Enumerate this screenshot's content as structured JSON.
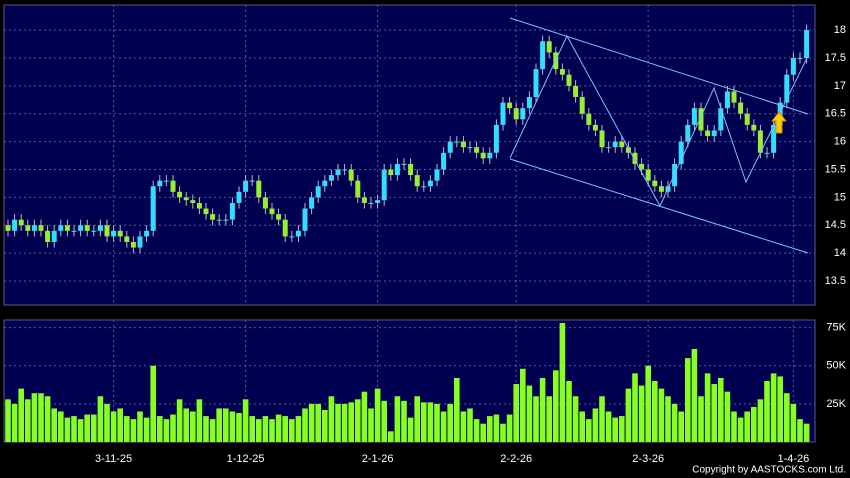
{
  "chart_data": [
    {
      "type": "candlestick",
      "up_color": "#33ddff",
      "down_color": "#99ee33",
      "grid": true,
      "ylim": [
        13.07,
        18.45
      ],
      "yticks": [
        13.5,
        14,
        14.5,
        15,
        15.5,
        16,
        16.5,
        17,
        17.5,
        18
      ],
      "open": [
        14.5,
        14.4,
        14.6,
        14.5,
        14.4,
        14.5,
        14.4,
        14.2,
        14.4,
        14.5,
        14.4,
        14.4,
        14.5,
        14.4,
        14.4,
        14.5,
        14.3,
        14.4,
        14.3,
        14.2,
        14.1,
        14.3,
        14.4,
        15.2,
        15.3,
        15.3,
        15.1,
        15.0,
        14.95,
        14.9,
        14.8,
        14.7,
        14.6,
        14.6,
        14.6,
        14.9,
        15.1,
        15.3,
        15.3,
        15.0,
        14.8,
        14.7,
        14.6,
        14.3,
        14.3,
        14.4,
        14.8,
        15.0,
        15.2,
        15.3,
        15.4,
        15.5,
        15.5,
        15.3,
        15.0,
        14.9,
        14.9,
        14.95,
        15.5,
        15.4,
        15.6,
        15.6,
        15.4,
        15.2,
        15.2,
        15.3,
        15.5,
        15.8,
        16.0,
        16.0,
        15.9,
        15.9,
        15.8,
        15.7,
        15.8,
        16.3,
        16.7,
        16.6,
        16.4,
        16.6,
        16.8,
        17.3,
        17.8,
        17.6,
        17.3,
        17.2,
        17.0,
        16.8,
        16.5,
        16.3,
        16.2,
        15.9,
        15.9,
        16.0,
        15.9,
        15.8,
        15.6,
        15.5,
        15.3,
        15.2,
        15.1,
        15.2,
        15.6,
        16.0,
        16.3,
        16.6,
        16.2,
        16.1,
        16.2,
        16.6,
        16.9,
        16.7,
        16.5,
        16.3,
        16.2,
        15.8,
        15.8,
        16.3,
        16.7,
        17.2,
        17.5,
        17.5
      ],
      "high": [
        14.6,
        14.7,
        14.7,
        14.6,
        14.6,
        14.6,
        14.5,
        14.5,
        14.6,
        14.6,
        14.5,
        14.6,
        14.6,
        14.5,
        14.6,
        14.6,
        14.5,
        14.5,
        14.4,
        14.3,
        14.4,
        14.5,
        15.3,
        15.4,
        15.4,
        15.4,
        15.2,
        15.1,
        15.05,
        15.0,
        14.9,
        14.8,
        14.7,
        14.7,
        15.0,
        15.2,
        15.4,
        15.4,
        15.4,
        15.1,
        14.9,
        14.8,
        14.7,
        14.4,
        14.5,
        14.9,
        15.1,
        15.3,
        15.4,
        15.5,
        15.6,
        15.6,
        15.6,
        15.4,
        15.1,
        15.0,
        15.05,
        15.6,
        15.6,
        15.7,
        15.7,
        15.7,
        15.5,
        15.3,
        15.4,
        15.6,
        15.9,
        16.1,
        16.1,
        16.1,
        16.0,
        16.0,
        15.9,
        15.9,
        16.4,
        16.8,
        16.8,
        16.7,
        16.7,
        16.9,
        17.4,
        17.9,
        17.9,
        17.7,
        17.4,
        17.3,
        17.1,
        16.9,
        16.6,
        16.4,
        16.3,
        16.0,
        16.1,
        16.1,
        16.0,
        15.9,
        15.7,
        15.6,
        15.4,
        15.3,
        15.3,
        15.7,
        16.1,
        16.4,
        16.7,
        16.7,
        16.3,
        16.3,
        16.7,
        17.0,
        17.0,
        16.8,
        16.6,
        16.4,
        16.3,
        15.9,
        16.4,
        16.8,
        17.3,
        17.6,
        17.6,
        18.1
      ],
      "low": [
        14.3,
        14.3,
        14.4,
        14.3,
        14.3,
        14.3,
        14.1,
        14.1,
        14.3,
        14.3,
        14.3,
        14.3,
        14.3,
        14.3,
        14.3,
        14.2,
        14.2,
        14.2,
        14.1,
        14.0,
        14.0,
        14.2,
        14.3,
        15.1,
        15.2,
        15.0,
        14.9,
        14.85,
        14.8,
        14.7,
        14.6,
        14.5,
        14.5,
        14.5,
        14.5,
        14.8,
        15.0,
        15.2,
        14.9,
        14.7,
        14.6,
        14.5,
        14.2,
        14.2,
        14.2,
        14.3,
        14.7,
        14.9,
        15.1,
        15.2,
        15.3,
        15.4,
        15.2,
        14.9,
        14.8,
        14.8,
        14.8,
        14.85,
        15.3,
        15.3,
        15.5,
        15.3,
        15.1,
        15.1,
        15.1,
        15.2,
        15.4,
        15.7,
        15.9,
        15.8,
        15.8,
        15.7,
        15.6,
        15.6,
        15.7,
        16.2,
        16.5,
        16.3,
        16.3,
        16.5,
        16.7,
        17.2,
        17.5,
        17.2,
        17.1,
        16.9,
        16.7,
        16.4,
        16.2,
        16.1,
        15.8,
        15.8,
        15.8,
        15.8,
        15.7,
        15.5,
        15.4,
        15.2,
        15.1,
        15.0,
        15.0,
        15.1,
        15.5,
        15.9,
        16.2,
        16.1,
        16.0,
        16.0,
        16.1,
        16.5,
        16.6,
        16.4,
        16.2,
        16.1,
        15.7,
        15.7,
        15.7,
        16.2,
        16.6,
        17.1,
        17.4,
        17.4
      ],
      "close": [
        14.4,
        14.6,
        14.5,
        14.4,
        14.5,
        14.4,
        14.2,
        14.4,
        14.5,
        14.4,
        14.4,
        14.5,
        14.4,
        14.4,
        14.5,
        14.3,
        14.4,
        14.3,
        14.2,
        14.1,
        14.3,
        14.4,
        15.2,
        15.3,
        15.3,
        15.1,
        15.0,
        14.95,
        14.9,
        14.8,
        14.7,
        14.6,
        14.6,
        14.6,
        14.9,
        15.1,
        15.3,
        15.3,
        15.0,
        14.8,
        14.7,
        14.6,
        14.3,
        14.3,
        14.4,
        14.8,
        15.0,
        15.2,
        15.3,
        15.4,
        15.5,
        15.5,
        15.3,
        15.0,
        14.9,
        14.9,
        14.95,
        15.5,
        15.4,
        15.6,
        15.6,
        15.4,
        15.2,
        15.2,
        15.3,
        15.5,
        15.8,
        16.0,
        16.0,
        15.9,
        15.9,
        15.8,
        15.7,
        15.8,
        16.3,
        16.7,
        16.6,
        16.4,
        16.6,
        16.8,
        17.3,
        17.8,
        17.6,
        17.3,
        17.2,
        17.0,
        16.8,
        16.5,
        16.3,
        16.2,
        15.9,
        15.9,
        16.0,
        15.9,
        15.8,
        15.6,
        15.5,
        15.3,
        15.2,
        15.1,
        15.2,
        15.6,
        16.0,
        16.3,
        16.6,
        16.2,
        16.1,
        16.2,
        16.6,
        16.9,
        16.7,
        16.5,
        16.3,
        16.2,
        15.8,
        15.8,
        16.3,
        16.7,
        17.2,
        17.5,
        17.5,
        18.0
      ]
    },
    {
      "type": "bar",
      "color": "#88ff22",
      "grid": true,
      "ylim": [
        0,
        80000
      ],
      "yticks": [
        {
          "value": 25000,
          "label": "25K"
        },
        {
          "value": 50000,
          "label": "50K"
        },
        {
          "value": 75000,
          "label": "75K"
        }
      ],
      "categories": [
        null,
        null,
        null,
        null,
        null,
        null,
        null,
        null,
        null,
        null,
        null,
        null,
        null,
        null,
        null,
        null,
        "3-11-25",
        null,
        null,
        null,
        null,
        null,
        null,
        null,
        null,
        null,
        null,
        null,
        null,
        null,
        null,
        null,
        null,
        null,
        null,
        null,
        "1-12-25",
        null,
        null,
        null,
        null,
        null,
        null,
        null,
        null,
        null,
        null,
        null,
        null,
        null,
        null,
        null,
        null,
        null,
        null,
        null,
        "2-1-26",
        null,
        null,
        null,
        null,
        null,
        null,
        null,
        null,
        null,
        null,
        null,
        null,
        null,
        null,
        null,
        null,
        null,
        null,
        null,
        null,
        "2-2-26",
        null,
        null,
        null,
        null,
        null,
        null,
        null,
        null,
        null,
        null,
        null,
        null,
        null,
        null,
        null,
        null,
        null,
        null,
        null,
        "2-3-26",
        null,
        null,
        null,
        null,
        null,
        null,
        null,
        null,
        null,
        null,
        null,
        null,
        null,
        null,
        null,
        null,
        null,
        null,
        null,
        null,
        null,
        "1-4-26",
        null,
        null
      ],
      "values": [
        28000,
        25000,
        35000,
        28000,
        32000,
        32000,
        30000,
        22000,
        20000,
        16000,
        17000,
        15000,
        18000,
        18000,
        30000,
        25000,
        20000,
        22000,
        17000,
        15000,
        20000,
        16000,
        50000,
        17000,
        15000,
        18000,
        28000,
        22000,
        20000,
        28000,
        17000,
        15000,
        22000,
        22000,
        20000,
        19000,
        28000,
        17000,
        15000,
        17000,
        15000,
        18000,
        17000,
        15000,
        17000,
        22000,
        25000,
        25000,
        21000,
        30000,
        25000,
        25000,
        26000,
        28000,
        33000,
        22000,
        35000,
        27000,
        7000,
        30000,
        27000,
        16000,
        30000,
        26000,
        26000,
        25000,
        20000,
        25000,
        42000,
        20000,
        22000,
        15000,
        12000,
        17000,
        18000,
        12000,
        18000,
        38000,
        48000,
        37000,
        30000,
        42000,
        30000,
        47000,
        78000,
        40000,
        30000,
        20000,
        15000,
        22000,
        30000,
        20000,
        16000,
        17000,
        35000,
        45000,
        37000,
        50000,
        40000,
        35000,
        30000,
        25000,
        20000,
        55000,
        61000,
        30000,
        45000,
        38000,
        42000,
        33000,
        20000,
        16000,
        20000,
        23000,
        28000,
        40000,
        45000,
        43000,
        32000,
        25000,
        15000,
        12000
      ]
    }
  ],
  "copyright": "Copyright by AASTOCKS.com Ltd."
}
